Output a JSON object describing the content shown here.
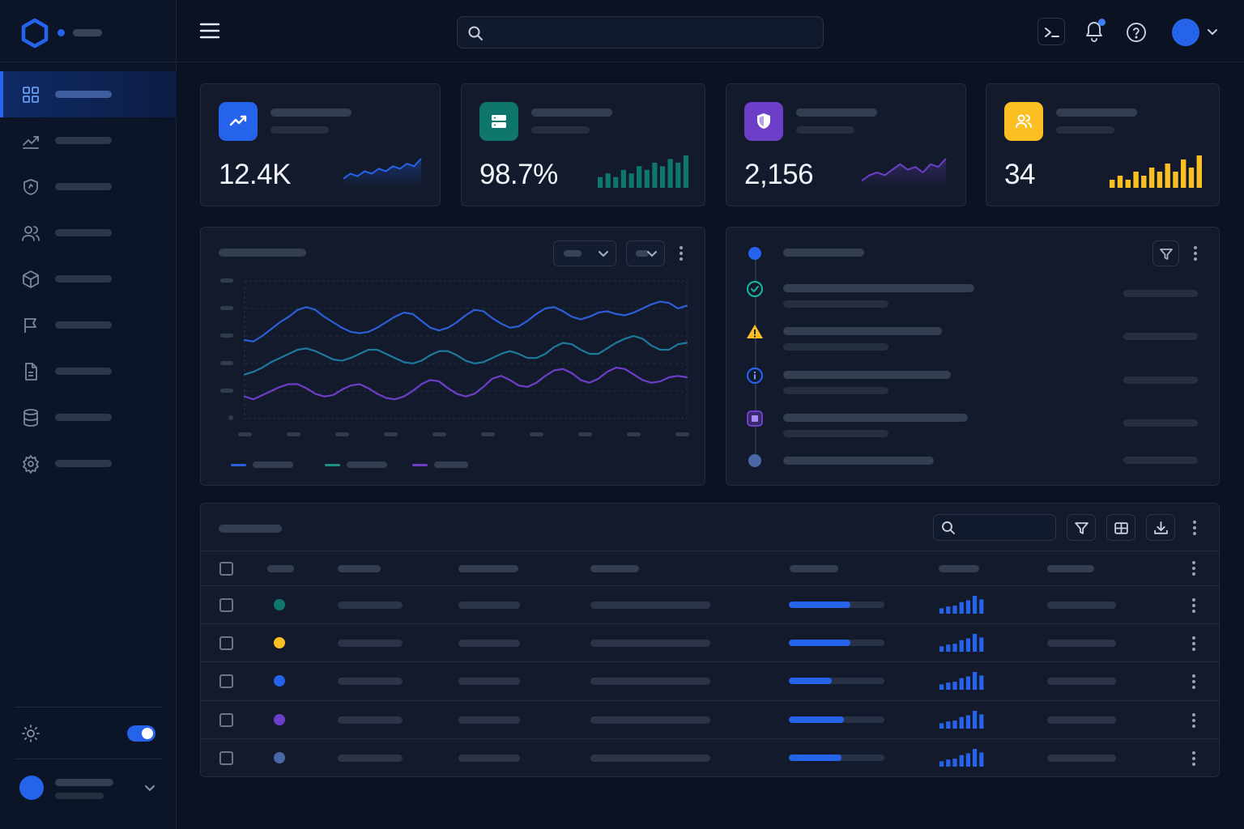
{
  "header": {
    "search": {
      "value": "",
      "placeholder": ""
    },
    "notification_dot": true
  },
  "sidebar": {
    "items": [
      {
        "icon": "grid-icon",
        "active": true
      },
      {
        "icon": "trend-icon",
        "active": false
      },
      {
        "icon": "shield-icon",
        "active": false
      },
      {
        "icon": "users-icon",
        "active": false
      },
      {
        "icon": "box-icon",
        "active": false
      },
      {
        "icon": "flag-icon",
        "active": false
      },
      {
        "icon": "document-icon",
        "active": false
      },
      {
        "icon": "database-icon",
        "active": false
      },
      {
        "icon": "gear-icon",
        "active": false
      }
    ],
    "theme_toggle_on": true
  },
  "kpis": [
    {
      "value": "12.4K",
      "icon": "trend-up-icon",
      "color": "#2563eb",
      "spark_type": "line",
      "spark": [
        3,
        5,
        4,
        6,
        5,
        7,
        6,
        8,
        7,
        9,
        8,
        11
      ]
    },
    {
      "value": "98.7%",
      "icon": "server-icon",
      "color": "#0f766e",
      "spark_type": "bar",
      "spark": [
        3,
        4,
        3,
        5,
        4,
        6,
        5,
        7,
        6,
        8,
        7,
        9
      ]
    },
    {
      "value": "2,156",
      "icon": "shield-icon",
      "color": "#6d3fc9",
      "spark_type": "line",
      "spark": [
        2,
        4,
        5,
        4,
        6,
        8,
        6,
        7,
        5,
        8,
        7,
        10
      ]
    },
    {
      "value": "34",
      "icon": "users-icon",
      "color": "#fbbf24",
      "spark_type": "bar",
      "spark": [
        2,
        3,
        2,
        4,
        3,
        5,
        4,
        6,
        4,
        7,
        5,
        8
      ]
    }
  ],
  "chart_data": {
    "type": "line",
    "title": "",
    "xlabel": "",
    "ylabel": "",
    "grid": true,
    "legend": "bottom-left",
    "ylim": [
      0,
      100
    ],
    "x": [
      0,
      2,
      4,
      6,
      8,
      10,
      12,
      14,
      16,
      18,
      20,
      22,
      24,
      26,
      28,
      30,
      32,
      34,
      36,
      38,
      40,
      42,
      44,
      46,
      48,
      50,
      52,
      54,
      56,
      58,
      60,
      62,
      64,
      66,
      68,
      70,
      72,
      74,
      76,
      78,
      80,
      82,
      84,
      86,
      88,
      90,
      92,
      94,
      96,
      98,
      100
    ],
    "series": [
      {
        "color": "#2d5fd8",
        "values": [
          57,
          56,
          60,
          65,
          70,
          74,
          79,
          81,
          79,
          74,
          70,
          66,
          63,
          62,
          63,
          66,
          70,
          74,
          77,
          76,
          71,
          66,
          64,
          66,
          70,
          75,
          79,
          78,
          73,
          69,
          66,
          67,
          71,
          76,
          80,
          81,
          78,
          74,
          72,
          74,
          77,
          78,
          76,
          75,
          77,
          80,
          83,
          85,
          84,
          80,
          82
        ]
      },
      {
        "color": "#1d7a9c",
        "values": [
          32,
          34,
          37,
          41,
          44,
          47,
          50,
          51,
          49,
          46,
          43,
          42,
          44,
          47,
          50,
          50,
          47,
          44,
          41,
          40,
          42,
          46,
          49,
          49,
          46,
          42,
          40,
          41,
          44,
          47,
          49,
          47,
          44,
          44,
          47,
          52,
          55,
          54,
          50,
          47,
          47,
          51,
          55,
          58,
          60,
          58,
          53,
          50,
          50,
          54,
          55
        ]
      },
      {
        "color": "#6d3fc9",
        "values": [
          16,
          14,
          17,
          20,
          23,
          25,
          25,
          22,
          18,
          16,
          17,
          21,
          24,
          25,
          22,
          18,
          15,
          14,
          16,
          20,
          25,
          28,
          27,
          22,
          18,
          16,
          18,
          23,
          29,
          31,
          28,
          24,
          23,
          26,
          31,
          35,
          36,
          33,
          28,
          26,
          29,
          34,
          37,
          36,
          32,
          28,
          26,
          27,
          30,
          31,
          30
        ]
      }
    ]
  },
  "activity": {
    "events": [
      {
        "icon": "dot-blue",
        "type": "header"
      },
      {
        "icon": "check-circle-icon",
        "type": "success"
      },
      {
        "icon": "warning-icon",
        "type": "warning"
      },
      {
        "icon": "info-icon",
        "type": "info"
      },
      {
        "icon": "square-icon",
        "type": "purple"
      },
      {
        "icon": "dot-gray",
        "type": "end"
      }
    ]
  },
  "table": {
    "search": {
      "value": "",
      "placeholder": ""
    },
    "rows": [
      {
        "status_color": "#0f766e",
        "progress": 0.64,
        "bars": [
          6,
          8,
          9,
          13,
          15,
          20,
          16
        ]
      },
      {
        "status_color": "#fbbf24",
        "progress": 0.64,
        "bars": [
          6,
          8,
          9,
          13,
          15,
          20,
          16
        ]
      },
      {
        "status_color": "#2563eb",
        "progress": 0.45,
        "bars": [
          6,
          8,
          9,
          13,
          15,
          20,
          16
        ]
      },
      {
        "status_color": "#6d3fc9",
        "progress": 0.58,
        "bars": [
          6,
          8,
          9,
          13,
          15,
          20,
          16
        ]
      },
      {
        "status_color": "#4a68a6",
        "progress": 0.55,
        "bars": [
          6,
          8,
          9,
          13,
          15,
          20,
          16
        ]
      }
    ]
  }
}
